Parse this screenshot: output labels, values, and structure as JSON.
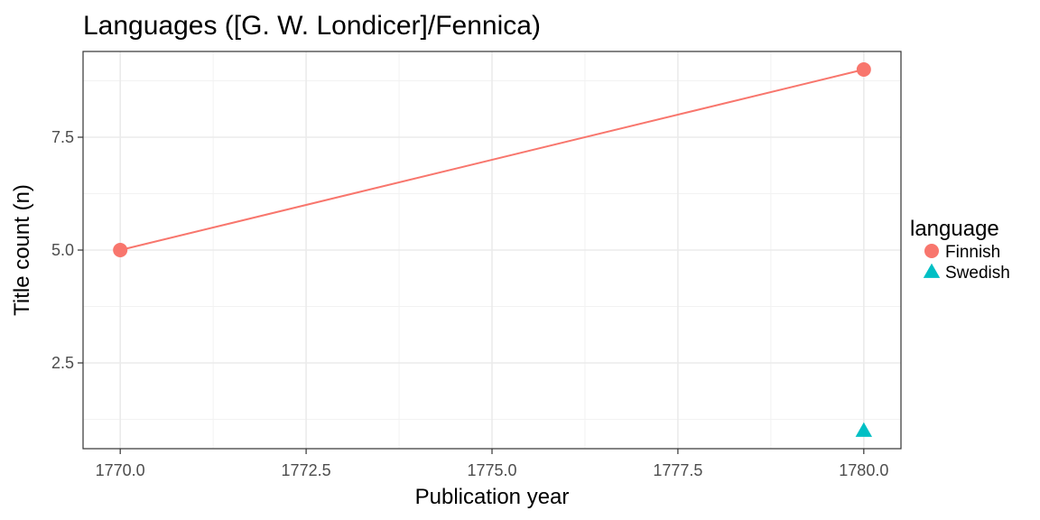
{
  "chart_data": {
    "type": "line",
    "title": "Languages ([G. W. Londicer]/Fennica)",
    "xlabel": "Publication year",
    "ylabel": "Title count (n)",
    "xlim": [
      1769.5,
      1780.5
    ],
    "ylim": [
      0.6,
      9.4
    ],
    "x_ticks": [
      1770,
      1772.5,
      1775,
      1777.5,
      1780
    ],
    "x_tick_labels": [
      "1770.0",
      "1772.5",
      "1775.0",
      "1777.5",
      "1780.0"
    ],
    "y_ticks": [
      2.5,
      5,
      7.5
    ],
    "y_tick_labels": [
      "2.5",
      "5.0",
      "7.5"
    ],
    "grid": true,
    "legend": {
      "title": "language",
      "position": "right"
    },
    "series": [
      {
        "name": "Finnish",
        "color": "#F8766D",
        "marker": "circle",
        "line": true,
        "points": [
          {
            "x": 1770,
            "y": 5
          },
          {
            "x": 1780,
            "y": 9
          }
        ]
      },
      {
        "name": "Swedish",
        "color": "#00BFC4",
        "marker": "triangle",
        "line": false,
        "points": [
          {
            "x": 1780,
            "y": 1
          }
        ]
      }
    ]
  }
}
